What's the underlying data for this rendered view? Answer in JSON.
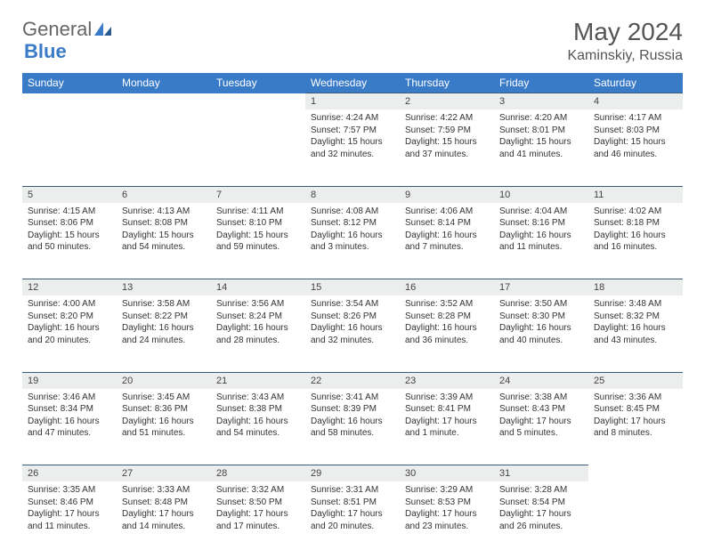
{
  "brand": {
    "part1": "General",
    "part2": "Blue"
  },
  "title": "May 2024",
  "location": "Kaminskiy, Russia",
  "colors": {
    "header_bg": "#3a7bc8",
    "header_text": "#ffffff",
    "daynum_bg": "#eceded",
    "border": "#3a5b7a",
    "text": "#333333"
  },
  "days_of_week": [
    "Sunday",
    "Monday",
    "Tuesday",
    "Wednesday",
    "Thursday",
    "Friday",
    "Saturday"
  ],
  "weeks": [
    [
      null,
      null,
      null,
      {
        "n": "1",
        "sr": "Sunrise: 4:24 AM",
        "ss": "Sunset: 7:57 PM",
        "d1": "Daylight: 15 hours",
        "d2": "and 32 minutes."
      },
      {
        "n": "2",
        "sr": "Sunrise: 4:22 AM",
        "ss": "Sunset: 7:59 PM",
        "d1": "Daylight: 15 hours",
        "d2": "and 37 minutes."
      },
      {
        "n": "3",
        "sr": "Sunrise: 4:20 AM",
        "ss": "Sunset: 8:01 PM",
        "d1": "Daylight: 15 hours",
        "d2": "and 41 minutes."
      },
      {
        "n": "4",
        "sr": "Sunrise: 4:17 AM",
        "ss": "Sunset: 8:03 PM",
        "d1": "Daylight: 15 hours",
        "d2": "and 46 minutes."
      }
    ],
    [
      {
        "n": "5",
        "sr": "Sunrise: 4:15 AM",
        "ss": "Sunset: 8:06 PM",
        "d1": "Daylight: 15 hours",
        "d2": "and 50 minutes."
      },
      {
        "n": "6",
        "sr": "Sunrise: 4:13 AM",
        "ss": "Sunset: 8:08 PM",
        "d1": "Daylight: 15 hours",
        "d2": "and 54 minutes."
      },
      {
        "n": "7",
        "sr": "Sunrise: 4:11 AM",
        "ss": "Sunset: 8:10 PM",
        "d1": "Daylight: 15 hours",
        "d2": "and 59 minutes."
      },
      {
        "n": "8",
        "sr": "Sunrise: 4:08 AM",
        "ss": "Sunset: 8:12 PM",
        "d1": "Daylight: 16 hours",
        "d2": "and 3 minutes."
      },
      {
        "n": "9",
        "sr": "Sunrise: 4:06 AM",
        "ss": "Sunset: 8:14 PM",
        "d1": "Daylight: 16 hours",
        "d2": "and 7 minutes."
      },
      {
        "n": "10",
        "sr": "Sunrise: 4:04 AM",
        "ss": "Sunset: 8:16 PM",
        "d1": "Daylight: 16 hours",
        "d2": "and 11 minutes."
      },
      {
        "n": "11",
        "sr": "Sunrise: 4:02 AM",
        "ss": "Sunset: 8:18 PM",
        "d1": "Daylight: 16 hours",
        "d2": "and 16 minutes."
      }
    ],
    [
      {
        "n": "12",
        "sr": "Sunrise: 4:00 AM",
        "ss": "Sunset: 8:20 PM",
        "d1": "Daylight: 16 hours",
        "d2": "and 20 minutes."
      },
      {
        "n": "13",
        "sr": "Sunrise: 3:58 AM",
        "ss": "Sunset: 8:22 PM",
        "d1": "Daylight: 16 hours",
        "d2": "and 24 minutes."
      },
      {
        "n": "14",
        "sr": "Sunrise: 3:56 AM",
        "ss": "Sunset: 8:24 PM",
        "d1": "Daylight: 16 hours",
        "d2": "and 28 minutes."
      },
      {
        "n": "15",
        "sr": "Sunrise: 3:54 AM",
        "ss": "Sunset: 8:26 PM",
        "d1": "Daylight: 16 hours",
        "d2": "and 32 minutes."
      },
      {
        "n": "16",
        "sr": "Sunrise: 3:52 AM",
        "ss": "Sunset: 8:28 PM",
        "d1": "Daylight: 16 hours",
        "d2": "and 36 minutes."
      },
      {
        "n": "17",
        "sr": "Sunrise: 3:50 AM",
        "ss": "Sunset: 8:30 PM",
        "d1": "Daylight: 16 hours",
        "d2": "and 40 minutes."
      },
      {
        "n": "18",
        "sr": "Sunrise: 3:48 AM",
        "ss": "Sunset: 8:32 PM",
        "d1": "Daylight: 16 hours",
        "d2": "and 43 minutes."
      }
    ],
    [
      {
        "n": "19",
        "sr": "Sunrise: 3:46 AM",
        "ss": "Sunset: 8:34 PM",
        "d1": "Daylight: 16 hours",
        "d2": "and 47 minutes."
      },
      {
        "n": "20",
        "sr": "Sunrise: 3:45 AM",
        "ss": "Sunset: 8:36 PM",
        "d1": "Daylight: 16 hours",
        "d2": "and 51 minutes."
      },
      {
        "n": "21",
        "sr": "Sunrise: 3:43 AM",
        "ss": "Sunset: 8:38 PM",
        "d1": "Daylight: 16 hours",
        "d2": "and 54 minutes."
      },
      {
        "n": "22",
        "sr": "Sunrise: 3:41 AM",
        "ss": "Sunset: 8:39 PM",
        "d1": "Daylight: 16 hours",
        "d2": "and 58 minutes."
      },
      {
        "n": "23",
        "sr": "Sunrise: 3:39 AM",
        "ss": "Sunset: 8:41 PM",
        "d1": "Daylight: 17 hours",
        "d2": "and 1 minute."
      },
      {
        "n": "24",
        "sr": "Sunrise: 3:38 AM",
        "ss": "Sunset: 8:43 PM",
        "d1": "Daylight: 17 hours",
        "d2": "and 5 minutes."
      },
      {
        "n": "25",
        "sr": "Sunrise: 3:36 AM",
        "ss": "Sunset: 8:45 PM",
        "d1": "Daylight: 17 hours",
        "d2": "and 8 minutes."
      }
    ],
    [
      {
        "n": "26",
        "sr": "Sunrise: 3:35 AM",
        "ss": "Sunset: 8:46 PM",
        "d1": "Daylight: 17 hours",
        "d2": "and 11 minutes."
      },
      {
        "n": "27",
        "sr": "Sunrise: 3:33 AM",
        "ss": "Sunset: 8:48 PM",
        "d1": "Daylight: 17 hours",
        "d2": "and 14 minutes."
      },
      {
        "n": "28",
        "sr": "Sunrise: 3:32 AM",
        "ss": "Sunset: 8:50 PM",
        "d1": "Daylight: 17 hours",
        "d2": "and 17 minutes."
      },
      {
        "n": "29",
        "sr": "Sunrise: 3:31 AM",
        "ss": "Sunset: 8:51 PM",
        "d1": "Daylight: 17 hours",
        "d2": "and 20 minutes."
      },
      {
        "n": "30",
        "sr": "Sunrise: 3:29 AM",
        "ss": "Sunset: 8:53 PM",
        "d1": "Daylight: 17 hours",
        "d2": "and 23 minutes."
      },
      {
        "n": "31",
        "sr": "Sunrise: 3:28 AM",
        "ss": "Sunset: 8:54 PM",
        "d1": "Daylight: 17 hours",
        "d2": "and 26 minutes."
      },
      null
    ]
  ]
}
